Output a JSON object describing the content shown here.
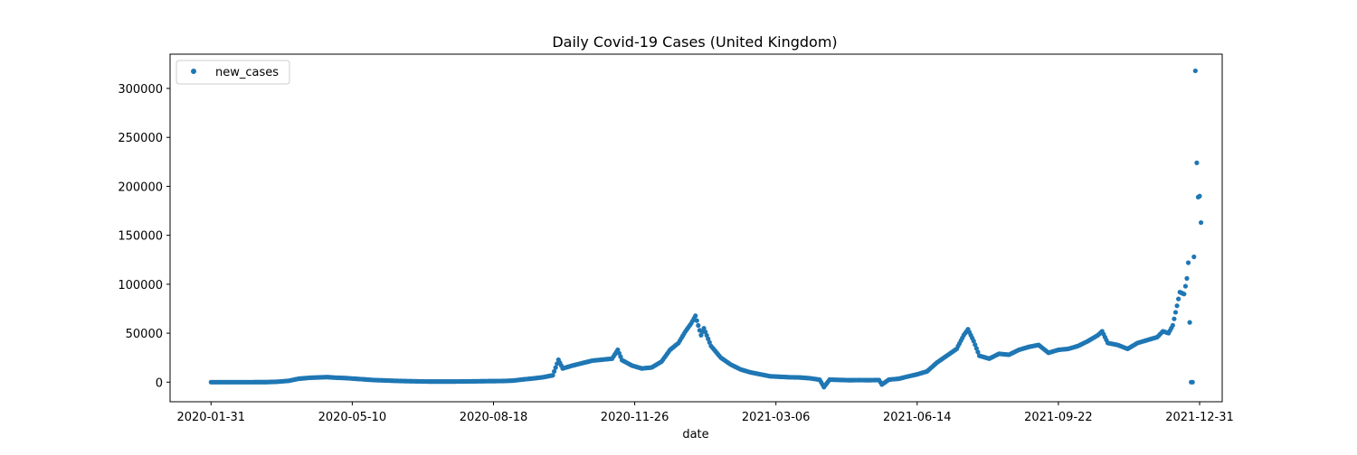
{
  "chart_data": {
    "type": "scatter",
    "title": "Daily Covid-19 Cases (United Kingdom)",
    "xlabel": "date",
    "ylabel": "",
    "x_range": [
      "2020-01-02",
      "2022-01-16"
    ],
    "ylim": [
      -20000,
      335000
    ],
    "grid": false,
    "legend_position": "top-left",
    "x_ticks": [
      "2020-01-31",
      "2020-05-10",
      "2020-08-18",
      "2020-11-26",
      "2021-03-06",
      "2021-06-14",
      "2021-09-22",
      "2021-12-31"
    ],
    "y_ticks": [
      0,
      50000,
      100000,
      150000,
      200000,
      250000,
      300000
    ],
    "marker_color": "#1f77b4",
    "series": [
      {
        "name": "new_cases",
        "points": [
          [
            "2020-01-31",
            0
          ],
          [
            "2020-02-15",
            5
          ],
          [
            "2020-03-01",
            20
          ],
          [
            "2020-03-10",
            60
          ],
          [
            "2020-03-18",
            450
          ],
          [
            "2020-03-26",
            1400
          ],
          [
            "2020-04-02",
            3500
          ],
          [
            "2020-04-10",
            4500
          ],
          [
            "2020-04-17",
            4900
          ],
          [
            "2020-04-22",
            5200
          ],
          [
            "2020-04-28",
            4600
          ],
          [
            "2020-05-05",
            4200
          ],
          [
            "2020-05-12",
            3500
          ],
          [
            "2020-05-19",
            2800
          ],
          [
            "2020-05-26",
            2100
          ],
          [
            "2020-06-02",
            1800
          ],
          [
            "2020-06-09",
            1400
          ],
          [
            "2020-06-16",
            1100
          ],
          [
            "2020-06-23",
            900
          ],
          [
            "2020-06-30",
            700
          ],
          [
            "2020-07-07",
            600
          ],
          [
            "2020-07-14",
            600
          ],
          [
            "2020-07-21",
            650
          ],
          [
            "2020-07-28",
            750
          ],
          [
            "2020-08-04",
            850
          ],
          [
            "2020-08-11",
            1000
          ],
          [
            "2020-08-18",
            1100
          ],
          [
            "2020-08-25",
            1200
          ],
          [
            "2020-09-01",
            1600
          ],
          [
            "2020-09-08",
            2800
          ],
          [
            "2020-09-15",
            3800
          ],
          [
            "2020-09-22",
            5000
          ],
          [
            "2020-09-29",
            7000
          ],
          [
            "2020-10-03",
            22900
          ],
          [
            "2020-10-06",
            14000
          ],
          [
            "2020-10-13",
            17000
          ],
          [
            "2020-10-20",
            19500
          ],
          [
            "2020-10-27",
            22000
          ],
          [
            "2020-11-03",
            23000
          ],
          [
            "2020-11-10",
            24000
          ],
          [
            "2020-11-14",
            33000
          ],
          [
            "2020-11-17",
            22500
          ],
          [
            "2020-11-24",
            17000
          ],
          [
            "2020-12-01",
            14000
          ],
          [
            "2020-12-08",
            15000
          ],
          [
            "2020-12-15",
            21000
          ],
          [
            "2020-12-21",
            33000
          ],
          [
            "2020-12-27",
            40000
          ],
          [
            "2021-01-01",
            52000
          ],
          [
            "2021-01-05",
            60000
          ],
          [
            "2021-01-08",
            67800
          ],
          [
            "2021-01-12",
            48000
          ],
          [
            "2021-01-14",
            55000
          ],
          [
            "2021-01-19",
            37000
          ],
          [
            "2021-01-26",
            25000
          ],
          [
            "2021-02-02",
            18000
          ],
          [
            "2021-02-09",
            13000
          ],
          [
            "2021-02-16",
            10000
          ],
          [
            "2021-02-23",
            8000
          ],
          [
            "2021-03-02",
            6000
          ],
          [
            "2021-03-09",
            5500
          ],
          [
            "2021-03-16",
            5000
          ],
          [
            "2021-03-23",
            4800
          ],
          [
            "2021-03-30",
            4000
          ],
          [
            "2021-04-06",
            2500
          ],
          [
            "2021-04-09",
            -5000
          ],
          [
            "2021-04-13",
            2600
          ],
          [
            "2021-04-20",
            2300
          ],
          [
            "2021-04-27",
            2000
          ],
          [
            "2021-05-04",
            2100
          ],
          [
            "2021-05-11",
            2000
          ],
          [
            "2021-05-18",
            2200
          ],
          [
            "2021-05-20",
            -2400
          ],
          [
            "2021-05-25",
            2600
          ],
          [
            "2021-06-01",
            3500
          ],
          [
            "2021-06-08",
            6000
          ],
          [
            "2021-06-14",
            8000
          ],
          [
            "2021-06-21",
            11000
          ],
          [
            "2021-06-28",
            20000
          ],
          [
            "2021-07-05",
            27000
          ],
          [
            "2021-07-12",
            34000
          ],
          [
            "2021-07-17",
            48000
          ],
          [
            "2021-07-20",
            54000
          ],
          [
            "2021-07-24",
            42000
          ],
          [
            "2021-07-28",
            27000
          ],
          [
            "2021-08-04",
            24000
          ],
          [
            "2021-08-11",
            29000
          ],
          [
            "2021-08-18",
            28000
          ],
          [
            "2021-08-25",
            33000
          ],
          [
            "2021-09-01",
            36000
          ],
          [
            "2021-09-08",
            38000
          ],
          [
            "2021-09-15",
            30000
          ],
          [
            "2021-09-22",
            33000
          ],
          [
            "2021-09-29",
            34000
          ],
          [
            "2021-10-06",
            37000
          ],
          [
            "2021-10-13",
            42000
          ],
          [
            "2021-10-20",
            48000
          ],
          [
            "2021-10-23",
            52000
          ],
          [
            "2021-10-27",
            40000
          ],
          [
            "2021-11-03",
            38000
          ],
          [
            "2021-11-10",
            34000
          ],
          [
            "2021-11-17",
            40000
          ],
          [
            "2021-11-24",
            43000
          ],
          [
            "2021-12-01",
            46000
          ],
          [
            "2021-12-05",
            52000
          ],
          [
            "2021-12-09",
            50000
          ],
          [
            "2021-12-12",
            58000
          ],
          [
            "2021-12-15",
            78000
          ],
          [
            "2021-12-17",
            92000
          ],
          [
            "2021-12-20",
            90000
          ],
          [
            "2021-12-22",
            106000
          ],
          [
            "2021-12-23",
            122000
          ],
          [
            "2021-12-25",
            0
          ],
          [
            "2021-12-26",
            0
          ],
          [
            "2021-12-27",
            128000
          ],
          [
            "2021-12-28",
            318000
          ],
          [
            "2021-12-29",
            224000
          ],
          [
            "2021-12-30",
            189000
          ],
          [
            "2021-12-31",
            190000
          ],
          [
            "2022-01-01",
            163000
          ]
        ]
      }
    ]
  }
}
